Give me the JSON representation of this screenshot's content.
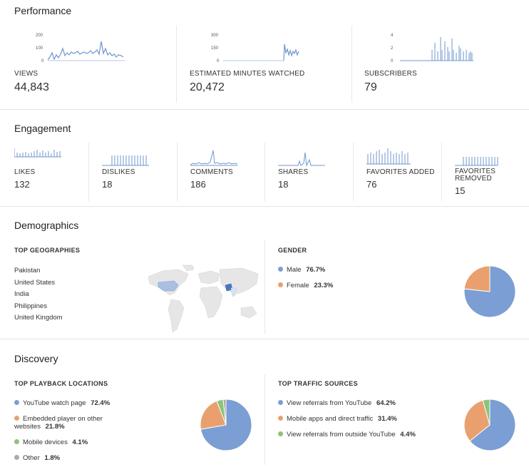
{
  "colors": {
    "blue": "#7b9ed4",
    "orange": "#e9a06e",
    "green": "#8ac47a",
    "gray": "#aaaaaa",
    "spark": "#6f95cf"
  },
  "performance": {
    "title": "Performance",
    "metrics": [
      {
        "label": "VIEWS",
        "value": "44,843",
        "ticks": [
          "200",
          "100",
          "0"
        ]
      },
      {
        "label": "ESTIMATED MINUTES WATCHED",
        "value": "20,472",
        "ticks": [
          "300",
          "150",
          "0"
        ]
      },
      {
        "label": "SUBSCRIBERS",
        "value": "79",
        "ticks": [
          "4",
          "2",
          "0"
        ]
      }
    ]
  },
  "engagement": {
    "title": "Engagement",
    "metrics": [
      {
        "label": "LIKES",
        "value": "132"
      },
      {
        "label": "DISLIKES",
        "value": "18"
      },
      {
        "label": "COMMENTS",
        "value": "186"
      },
      {
        "label": "SHARES",
        "value": "18"
      },
      {
        "label": "FAVORITES ADDED",
        "value": "76"
      },
      {
        "label": "FAVORITES REMOVED",
        "value": "15"
      }
    ]
  },
  "demographics": {
    "title": "Demographics",
    "geo_title": "TOP GEOGRAPHIES",
    "countries": [
      "Pakistan",
      "United States",
      "India",
      "Philippines",
      "United Kingdom"
    ],
    "gender_title": "GENDER",
    "gender": [
      {
        "name": "Male",
        "pct": "76.7%",
        "value": 76.7,
        "color": "#7b9ed4"
      },
      {
        "name": "Female",
        "pct": "23.3%",
        "value": 23.3,
        "color": "#e9a06e"
      }
    ]
  },
  "discovery": {
    "title": "Discovery",
    "playback_title": "TOP PLAYBACK LOCATIONS",
    "playback": [
      {
        "name": "YouTube watch page",
        "pct": "72.4%",
        "value": 72.4,
        "color": "#7b9ed4"
      },
      {
        "name": "Embedded player on other websites",
        "pct": "21.8%",
        "value": 21.8,
        "color": "#e9a06e"
      },
      {
        "name": "Mobile devices",
        "pct": "4.1%",
        "value": 4.1,
        "color": "#8ac47a"
      },
      {
        "name": "Other",
        "pct": "1.8%",
        "value": 1.8,
        "color": "#aaaaaa"
      }
    ],
    "traffic_title": "TOP TRAFFIC SOURCES",
    "traffic": [
      {
        "name": "View referrals from YouTube",
        "pct": "64.2%",
        "value": 64.2,
        "color": "#7b9ed4"
      },
      {
        "name": "Mobile apps and direct traffic",
        "pct": "31.4%",
        "value": 31.4,
        "color": "#e9a06e"
      },
      {
        "name": "View referrals from outside YouTube",
        "pct": "4.4%",
        "value": 4.4,
        "color": "#8ac47a"
      }
    ]
  }
}
